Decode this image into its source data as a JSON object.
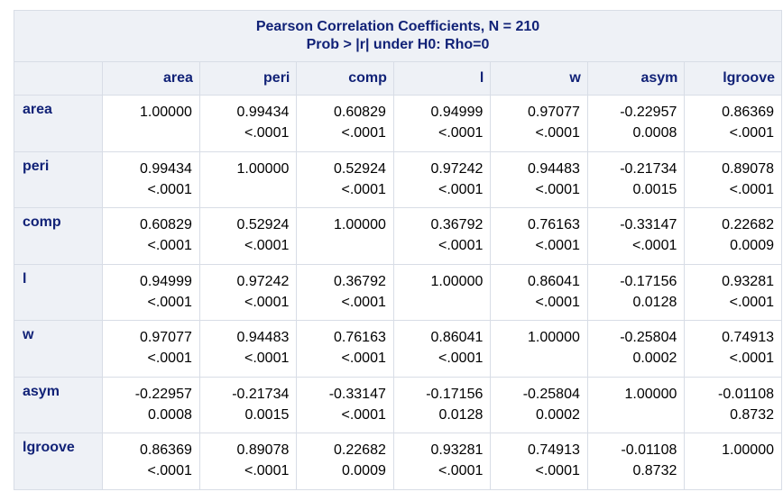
{
  "title_line1": "Pearson Correlation Coefficients, N = 210",
  "title_line2": "Prob > |r| under H0: Rho=0",
  "columns": [
    "area",
    "peri",
    "comp",
    "l",
    "w",
    "asym",
    "lgroove"
  ],
  "rows": [
    {
      "label": "area",
      "cells": [
        {
          "r": "1.00000",
          "p": ""
        },
        {
          "r": "0.99434",
          "p": "<.0001"
        },
        {
          "r": "0.60829",
          "p": "<.0001"
        },
        {
          "r": "0.94999",
          "p": "<.0001"
        },
        {
          "r": "0.97077",
          "p": "<.0001"
        },
        {
          "r": "-0.22957",
          "p": "0.0008"
        },
        {
          "r": "0.86369",
          "p": "<.0001"
        }
      ]
    },
    {
      "label": "peri",
      "cells": [
        {
          "r": "0.99434",
          "p": "<.0001"
        },
        {
          "r": "1.00000",
          "p": ""
        },
        {
          "r": "0.52924",
          "p": "<.0001"
        },
        {
          "r": "0.97242",
          "p": "<.0001"
        },
        {
          "r": "0.94483",
          "p": "<.0001"
        },
        {
          "r": "-0.21734",
          "p": "0.0015"
        },
        {
          "r": "0.89078",
          "p": "<.0001"
        }
      ]
    },
    {
      "label": "comp",
      "cells": [
        {
          "r": "0.60829",
          "p": "<.0001"
        },
        {
          "r": "0.52924",
          "p": "<.0001"
        },
        {
          "r": "1.00000",
          "p": ""
        },
        {
          "r": "0.36792",
          "p": "<.0001"
        },
        {
          "r": "0.76163",
          "p": "<.0001"
        },
        {
          "r": "-0.33147",
          "p": "<.0001"
        },
        {
          "r": "0.22682",
          "p": "0.0009"
        }
      ]
    },
    {
      "label": "l",
      "cells": [
        {
          "r": "0.94999",
          "p": "<.0001"
        },
        {
          "r": "0.97242",
          "p": "<.0001"
        },
        {
          "r": "0.36792",
          "p": "<.0001"
        },
        {
          "r": "1.00000",
          "p": ""
        },
        {
          "r": "0.86041",
          "p": "<.0001"
        },
        {
          "r": "-0.17156",
          "p": "0.0128"
        },
        {
          "r": "0.93281",
          "p": "<.0001"
        }
      ]
    },
    {
      "label": "w",
      "cells": [
        {
          "r": "0.97077",
          "p": "<.0001"
        },
        {
          "r": "0.94483",
          "p": "<.0001"
        },
        {
          "r": "0.76163",
          "p": "<.0001"
        },
        {
          "r": "0.86041",
          "p": "<.0001"
        },
        {
          "r": "1.00000",
          "p": ""
        },
        {
          "r": "-0.25804",
          "p": "0.0002"
        },
        {
          "r": "0.74913",
          "p": "<.0001"
        }
      ]
    },
    {
      "label": "asym",
      "cells": [
        {
          "r": "-0.22957",
          "p": "0.0008"
        },
        {
          "r": "-0.21734",
          "p": "0.0015"
        },
        {
          "r": "-0.33147",
          "p": "<.0001"
        },
        {
          "r": "-0.17156",
          "p": "0.0128"
        },
        {
          "r": "-0.25804",
          "p": "0.0002"
        },
        {
          "r": "1.00000",
          "p": ""
        },
        {
          "r": "-0.01108",
          "p": "0.8732"
        }
      ]
    },
    {
      "label": "lgroove",
      "cells": [
        {
          "r": "0.86369",
          "p": "<.0001"
        },
        {
          "r": "0.89078",
          "p": "<.0001"
        },
        {
          "r": "0.22682",
          "p": "0.0009"
        },
        {
          "r": "0.93281",
          "p": "<.0001"
        },
        {
          "r": "0.74913",
          "p": "<.0001"
        },
        {
          "r": "-0.01108",
          "p": "0.8732"
        },
        {
          "r": "1.00000",
          "p": ""
        }
      ]
    }
  ]
}
